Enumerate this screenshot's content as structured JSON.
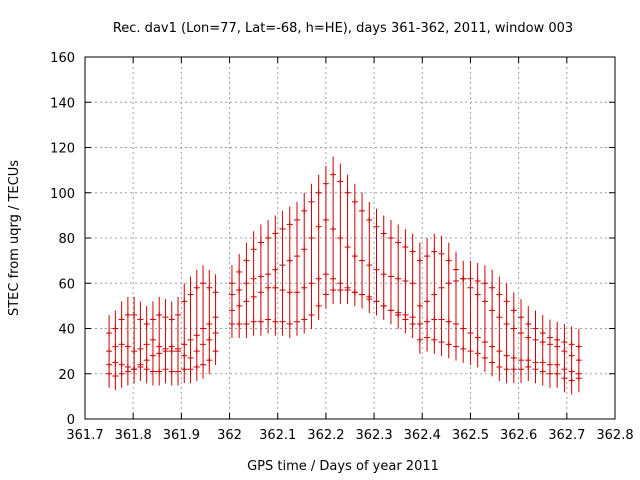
{
  "chart_data": {
    "type": "scatter",
    "title": "Rec. dav1 (Lon=77, Lat=-68, h=HE), days 361-362, 2011, window 003",
    "xlabel": "GPS time / Days of year 2011",
    "ylabel": "STEC from uqrg / TECUs",
    "xlim": [
      361.7,
      362.8
    ],
    "ylim": [
      0,
      160
    ],
    "xticks": [
      361.7,
      361.8,
      361.9,
      362.0,
      362.1,
      362.2,
      362.3,
      362.4,
      362.5,
      362.6,
      362.7,
      362.8
    ],
    "xtick_labels": [
      "361.7",
      "361.8",
      "361.9",
      "362",
      "362.1",
      "362.2",
      "362.3",
      "362.4",
      "362.5",
      "362.6",
      "362.7",
      "362.8"
    ],
    "yticks": [
      0,
      20,
      40,
      60,
      80,
      100,
      120,
      140,
      160
    ],
    "ytick_labels": [
      "0",
      "20",
      "40",
      "60",
      "80",
      "100",
      "120",
      "140",
      "160"
    ],
    "grid": true,
    "marker_color": "#cc0000",
    "series": [
      {
        "x": [
          361.75,
          361.763,
          361.776,
          361.789,
          361.802,
          361.815,
          361.828,
          361.841,
          361.854,
          361.867,
          361.88,
          361.893,
          361.906,
          361.919,
          361.932,
          361.945,
          361.958,
          361.971
        ],
        "y": [
          24,
          25,
          24,
          23,
          22,
          23,
          22,
          21,
          21,
          22,
          21,
          21,
          22,
          22,
          23,
          24,
          26,
          30
        ]
      },
      {
        "x": [
          361.75,
          361.763,
          361.776,
          361.789,
          361.802,
          361.815,
          361.828,
          361.841,
          361.854,
          361.867,
          361.88,
          361.893,
          361.906,
          361.919,
          361.932,
          361.945,
          361.958,
          361.971
        ],
        "y": [
          20,
          19,
          20,
          21,
          22,
          24,
          26,
          28,
          29,
          30,
          30,
          31,
          33,
          35,
          37,
          40,
          42,
          45
        ]
      },
      {
        "x": [
          361.75,
          361.763,
          361.776,
          361.789,
          361.802,
          361.815,
          361.828,
          361.841,
          361.854,
          361.867,
          361.88,
          361.893,
          361.906,
          361.919,
          361.932,
          361.945,
          361.958,
          361.971
        ],
        "y": [
          38,
          40,
          44,
          46,
          46,
          44,
          42,
          44,
          46,
          45,
          44,
          46,
          52,
          55,
          58,
          60,
          58,
          56
        ]
      },
      {
        "x": [
          361.75,
          361.763,
          361.776,
          361.789,
          361.802,
          361.815,
          361.828,
          361.841,
          361.854,
          361.867,
          361.88,
          361.893,
          361.906,
          361.919,
          361.932,
          361.945,
          361.958,
          361.971
        ],
        "y": [
          30,
          32,
          33,
          32,
          30,
          31,
          33,
          35,
          32,
          31,
          32,
          30,
          28,
          27,
          30,
          33,
          35,
          38
        ]
      },
      {
        "x": [
          362.005,
          362.02,
          362.035,
          362.05,
          362.065,
          362.08,
          362.095,
          362.11,
          362.125,
          362.14,
          362.155,
          362.17,
          362.185,
          362.2,
          362.215,
          362.23,
          362.245,
          362.26,
          362.275,
          362.29,
          362.305,
          362.32,
          362.335,
          362.35,
          362.365,
          362.38
        ],
        "y": [
          42,
          42,
          42,
          43,
          43,
          44,
          43,
          43,
          42,
          43,
          44,
          46,
          50,
          55,
          57,
          57,
          57,
          56,
          55,
          53,
          52,
          50,
          48,
          47,
          46,
          45
        ]
      },
      {
        "x": [
          362.005,
          362.02,
          362.035,
          362.05,
          362.065,
          362.08,
          362.095,
          362.11,
          362.125,
          362.14,
          362.155,
          362.17,
          362.185,
          362.2,
          362.215,
          362.23,
          362.245,
          362.26,
          362.275,
          362.29,
          362.305,
          362.32,
          362.335,
          362.35,
          362.365,
          362.38
        ],
        "y": [
          60,
          65,
          70,
          75,
          78,
          80,
          82,
          84,
          86,
          88,
          92,
          96,
          100,
          104,
          108,
          105,
          100,
          96,
          92,
          88,
          85,
          82,
          80,
          78,
          76,
          74
        ]
      },
      {
        "x": [
          362.005,
          362.02,
          362.035,
          362.05,
          362.065,
          362.08,
          362.095,
          362.11,
          362.125,
          362.14,
          362.155,
          362.17,
          362.185,
          362.2,
          362.215,
          362.23,
          362.245,
          362.26,
          362.275,
          362.29,
          362.305,
          362.32,
          362.335,
          362.35,
          362.365,
          362.38
        ],
        "y": [
          55,
          57,
          60,
          62,
          63,
          64,
          66,
          68,
          70,
          72,
          75,
          80,
          85,
          88,
          84,
          80,
          76,
          72,
          70,
          68,
          66,
          64,
          63,
          62,
          61,
          60
        ]
      },
      {
        "x": [
          362.005,
          362.02,
          362.035,
          362.05,
          362.065,
          362.08,
          362.095,
          362.11,
          362.125,
          362.14,
          362.155,
          362.17,
          362.185,
          362.2,
          362.215,
          362.23,
          362.245,
          362.26,
          362.275,
          362.29,
          362.305,
          362.32,
          362.335,
          362.35,
          362.365,
          362.38
        ],
        "y": [
          48,
          50,
          52,
          54,
          56,
          58,
          58,
          57,
          56,
          56,
          58,
          60,
          62,
          64,
          62,
          60,
          58,
          56,
          55,
          54,
          52,
          50,
          48,
          46,
          44,
          42
        ]
      },
      {
        "x": [
          362.395,
          362.41,
          362.425,
          362.44,
          362.455,
          362.47,
          362.485,
          362.5,
          362.515,
          362.53,
          362.545,
          362.56,
          362.575,
          362.59,
          362.605,
          362.62,
          362.635,
          362.65,
          362.665,
          362.68,
          362.695,
          362.71,
          362.725
        ],
        "y": [
          35,
          36,
          35,
          34,
          33,
          32,
          31,
          30,
          29,
          27,
          25,
          23,
          22,
          22,
          22,
          23,
          22,
          21,
          20,
          20,
          18,
          17,
          18
        ]
      },
      {
        "x": [
          362.395,
          362.41,
          362.425,
          362.44,
          362.455,
          362.47,
          362.485,
          362.5,
          362.515,
          362.53,
          362.545,
          362.56,
          362.575,
          362.59,
          362.605,
          362.62,
          362.635,
          362.65,
          362.665,
          362.68,
          362.695,
          362.71,
          362.725
        ],
        "y": [
          50,
          52,
          55,
          58,
          60,
          61,
          62,
          62,
          61,
          60,
          58,
          55,
          52,
          48,
          45,
          42,
          40,
          38,
          36,
          35,
          34,
          33,
          32
        ]
      },
      {
        "x": [
          362.395,
          362.41,
          362.425,
          362.44,
          362.455,
          362.47,
          362.485,
          362.5,
          362.515,
          362.53,
          362.545,
          362.56,
          362.575,
          362.59,
          362.605,
          362.62,
          362.635,
          362.65,
          362.665,
          362.68,
          362.695,
          362.71,
          362.725
        ],
        "y": [
          70,
          72,
          74,
          73,
          70,
          66,
          62,
          58,
          55,
          52,
          48,
          45,
          42,
          40,
          38,
          36,
          35,
          34,
          33,
          32,
          30,
          28,
          26
        ]
      },
      {
        "x": [
          362.395,
          362.41,
          362.425,
          362.44,
          362.455,
          362.47,
          362.485,
          362.5,
          362.515,
          362.53,
          362.545,
          362.56,
          362.575,
          362.59,
          362.605,
          362.62,
          362.635,
          362.65,
          362.665,
          362.68,
          362.695,
          362.71,
          362.725
        ],
        "y": [
          42,
          43,
          44,
          44,
          43,
          42,
          40,
          38,
          36,
          34,
          32,
          30,
          28,
          27,
          26,
          26,
          25,
          25,
          24,
          24,
          22,
          21,
          20
        ]
      }
    ]
  }
}
